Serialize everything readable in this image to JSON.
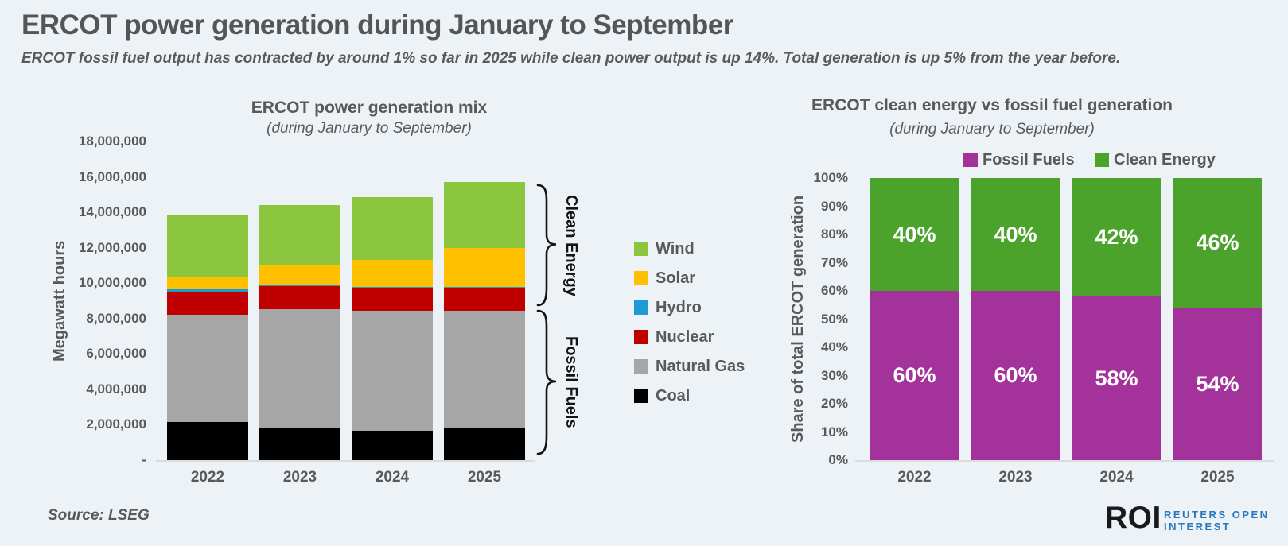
{
  "header": {
    "title": "ERCOT power generation during January to September",
    "subtitle": "ERCOT fossil fuel output has contracted by around 1% so far in 2025 while clean power output is up 14%. Total generation is up 5% from the year before."
  },
  "footer": {
    "source": "Source: LSEG",
    "logo": {
      "roi": "ROI",
      "line1": "REUTERS OPEN",
      "line2": "INTEREST"
    }
  },
  "colors": {
    "background": "#EDF2F7",
    "text_gray": "#595959",
    "baseline_gray": "#D8DCE1",
    "wind_green": "#8CC63F",
    "solar_yellow": "#FFC000",
    "hydro_blue": "#1E9BD7",
    "nuclear_red": "#C00000",
    "natural_gas_gray": "#A6A6A6",
    "coal_black": "#000000",
    "fossil_purple": "#A3329B",
    "clean_green": "#4CA32C",
    "roi_blue": "#2878BE"
  },
  "chart_data": [
    {
      "id": "generation_mix",
      "type": "bar",
      "stacked": true,
      "title": "ERCOT power generation mix",
      "subtitle": "(during January to September)",
      "ylabel": "Megawatt hours",
      "categories": [
        "2022",
        "2023",
        "2024",
        "2025"
      ],
      "ylim": [
        0,
        18000000
      ],
      "ytick_step": 2000000,
      "ytick_labels": [
        "-",
        "2,000,000",
        "4,000,000",
        "6,000,000",
        "8,000,000",
        "10,000,000",
        "12,000,000",
        "14,000,000",
        "16,000,000",
        "18,000,000"
      ],
      "grid": false,
      "series": [
        {
          "name": "Coal",
          "color": "#000000",
          "values": [
            2150000,
            1800000,
            1650000,
            1850000
          ]
        },
        {
          "name": "Natural Gas",
          "color": "#A6A6A6",
          "values": [
            6050000,
            6750000,
            6800000,
            6600000
          ]
        },
        {
          "name": "Nuclear",
          "color": "#C00000",
          "values": [
            1300000,
            1300000,
            1250000,
            1300000
          ]
        },
        {
          "name": "Hydro",
          "color": "#1E9BD7",
          "values": [
            130000,
            90000,
            90000,
            50000
          ]
        },
        {
          "name": "Solar",
          "color": "#FFC000",
          "values": [
            750000,
            1050000,
            1500000,
            2200000
          ]
        },
        {
          "name": "Wind",
          "color": "#8CC63F",
          "values": [
            3450000,
            3400000,
            3550000,
            3700000
          ]
        }
      ],
      "legend_position": "right",
      "annotations": [
        {
          "label": "Clean Energy"
        },
        {
          "label": "Fossil Fuels"
        }
      ]
    },
    {
      "id": "clean_vs_fossil",
      "type": "bar",
      "stacked": true,
      "title": "ERCOT clean energy vs fossil fuel generation",
      "subtitle": "(during January to September)",
      "ylabel": "Share of total ERCOT generation",
      "categories": [
        "2022",
        "2023",
        "2024",
        "2025"
      ],
      "ylim": [
        0,
        100
      ],
      "ytick_step": 10,
      "ytick_labels": [
        "0%",
        "10%",
        "20%",
        "30%",
        "40%",
        "50%",
        "60%",
        "70%",
        "80%",
        "90%",
        "100%"
      ],
      "grid": false,
      "series": [
        {
          "name": "Fossil Fuels",
          "color": "#A3329B",
          "values": [
            60,
            60,
            58,
            54
          ],
          "labels": [
            "60%",
            "60%",
            "58%",
            "54%"
          ]
        },
        {
          "name": "Clean Energy",
          "color": "#4CA32C",
          "values": [
            40,
            40,
            42,
            46
          ],
          "labels": [
            "40%",
            "40%",
            "42%",
            "46%"
          ]
        }
      ],
      "legend_position": "top"
    }
  ]
}
